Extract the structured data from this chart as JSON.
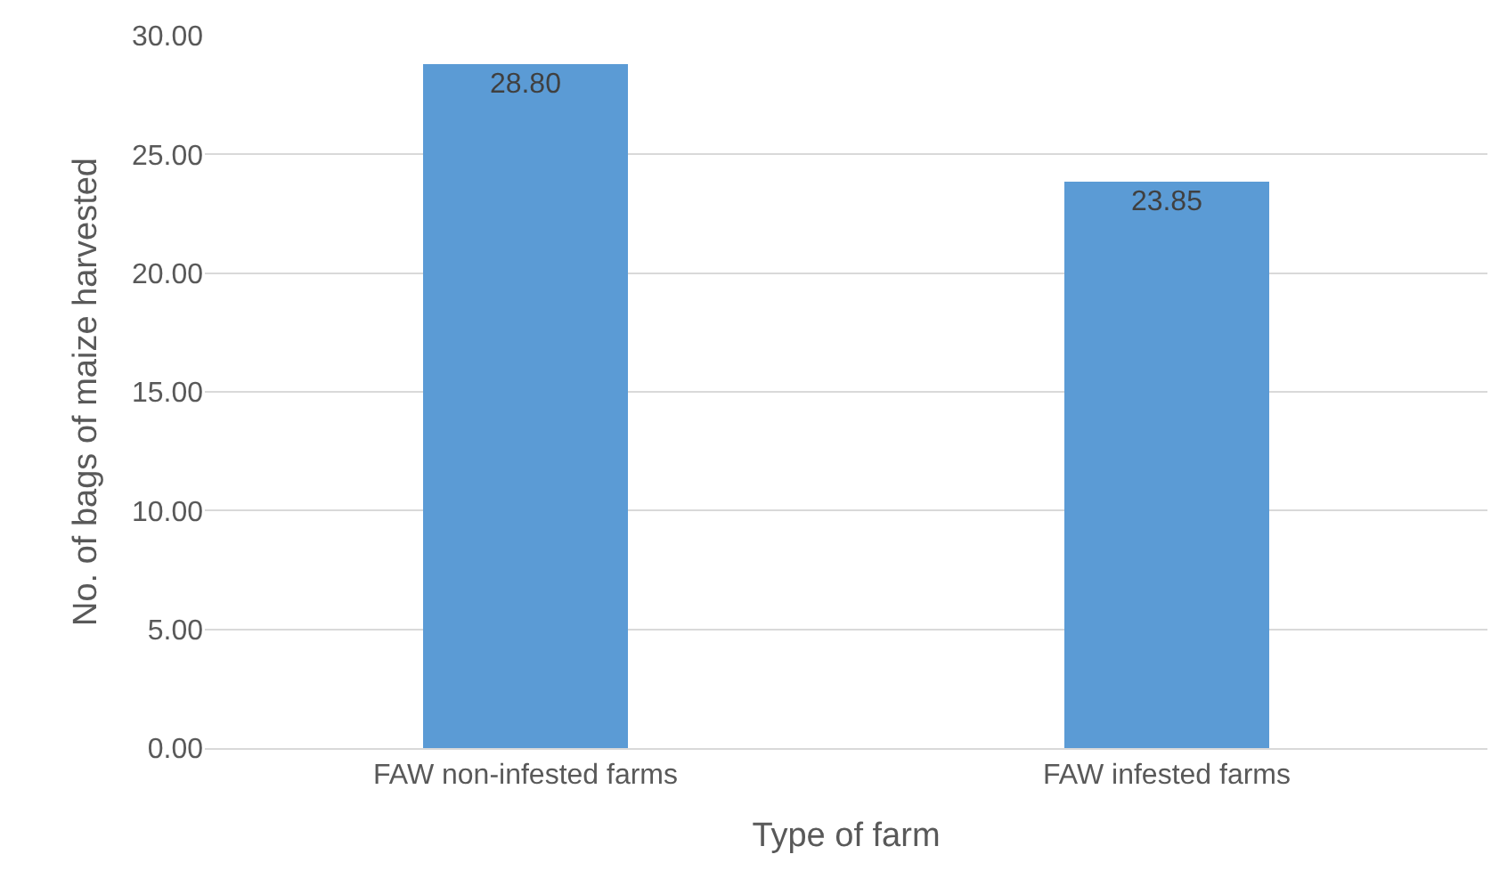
{
  "chart_data": {
    "type": "bar",
    "xlabel": "Type of farm",
    "ylabel": "No. of bags of maize harvested",
    "categories": [
      "FAW non-infested farms",
      "FAW infested farms"
    ],
    "values": [
      28.8,
      23.85
    ],
    "value_labels": [
      "28.80",
      "23.85"
    ],
    "color": "#5b9bd5",
    "ylim": [
      0,
      30
    ],
    "yticks": [
      {
        "value": 0,
        "label": "0.00"
      },
      {
        "value": 5,
        "label": "5.00"
      },
      {
        "value": 10,
        "label": "10.00"
      },
      {
        "value": 15,
        "label": "15.00"
      },
      {
        "value": 20,
        "label": "20.00"
      },
      {
        "value": 25,
        "label": "25.00"
      },
      {
        "value": 30,
        "label": "30.00"
      }
    ],
    "grid": "y"
  }
}
